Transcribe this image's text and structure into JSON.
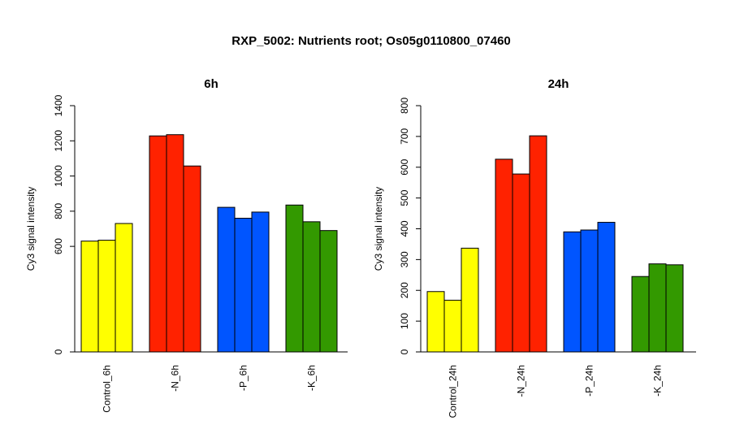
{
  "main_title": "RXP_5002: Nutrients root; Os05g0110800_07460",
  "chart_data": [
    {
      "type": "bar",
      "title": "6h",
      "ylabel": "Cy3 signal intensity",
      "xlabel": "",
      "ylim": [
        0,
        1400
      ],
      "yticks": [
        0,
        600,
        800,
        1000,
        1200,
        1400
      ],
      "categories": [
        "Control_6h",
        "-N_6h",
        "-P_6h",
        "-K_6h"
      ],
      "groups": [
        {
          "category": "Control_6h",
          "color": "#ffff00",
          "values": [
            630,
            635,
            730
          ]
        },
        {
          "category": "-N_6h",
          "color": "#ff2200",
          "values": [
            1228,
            1235,
            1057
          ]
        },
        {
          "category": "-P_6h",
          "color": "#0055ff",
          "values": [
            822,
            760,
            795
          ]
        },
        {
          "category": "-K_6h",
          "color": "#339900",
          "values": [
            835,
            740,
            690
          ]
        }
      ],
      "grid": false,
      "legend": "none"
    },
    {
      "type": "bar",
      "title": "24h",
      "ylabel": "Cy3 signal intensity",
      "xlabel": "",
      "ylim": [
        0,
        800
      ],
      "yticks": [
        0,
        100,
        200,
        300,
        400,
        500,
        600,
        700,
        800
      ],
      "categories": [
        "Control_24h",
        "-N_24h",
        "-P_24h",
        "-K_24h"
      ],
      "groups": [
        {
          "category": "Control_24h",
          "color": "#ffff00",
          "values": [
            196,
            168,
            337
          ]
        },
        {
          "category": "-N_24h",
          "color": "#ff2200",
          "values": [
            626,
            578,
            702
          ]
        },
        {
          "category": "-P_24h",
          "color": "#0055ff",
          "values": [
            390,
            396,
            421
          ]
        },
        {
          "category": "-K_24h",
          "color": "#339900",
          "values": [
            245,
            286,
            283
          ]
        }
      ],
      "grid": false,
      "legend": "none"
    }
  ]
}
